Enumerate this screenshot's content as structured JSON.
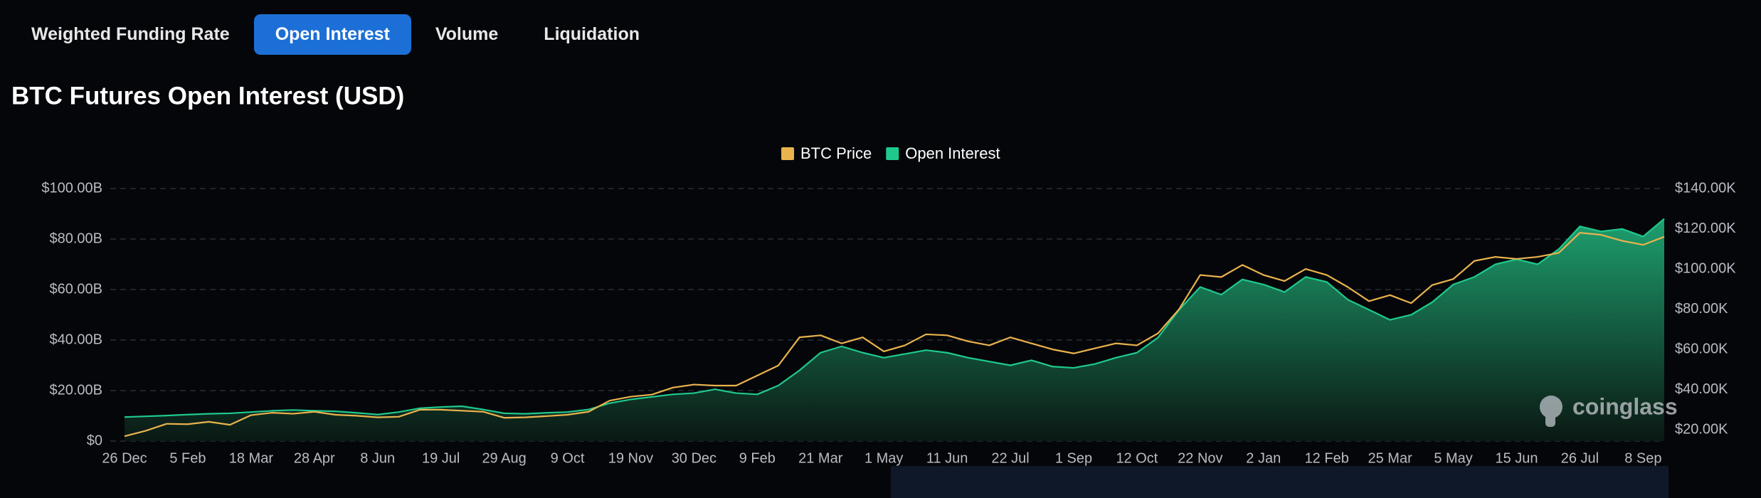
{
  "tabs": [
    "Weighted Funding Rate",
    "Open Interest",
    "Volume",
    "Liquidation"
  ],
  "chart_data": {
    "type": "line",
    "title": "BTC Futures Open Interest (USD)",
    "watermark": "coinglass",
    "legend": "top",
    "grid": true,
    "categories": [
      "26 Dec",
      null,
      null,
      "5 Feb",
      null,
      null,
      "18 Mar",
      null,
      null,
      "28 Apr",
      null,
      null,
      "8 Jun",
      null,
      null,
      "19 Jul",
      null,
      null,
      "29 Aug",
      null,
      null,
      "9 Oct",
      null,
      null,
      "19 Nov",
      null,
      null,
      "30 Dec",
      null,
      null,
      "9 Feb",
      null,
      null,
      "21 Mar",
      null,
      null,
      "1 May",
      null,
      null,
      "11 Jun",
      null,
      null,
      "22 Jul",
      null,
      null,
      "1 Sep",
      null,
      null,
      "12 Oct",
      null,
      null,
      "22 Nov",
      null,
      null,
      "2 Jan",
      null,
      null,
      "12 Feb",
      null,
      null,
      "25 Mar",
      null,
      null,
      "5 May",
      null,
      null,
      "15 Jun",
      null,
      null,
      "26 Jul",
      null,
      null,
      "8 Sep",
      null
    ],
    "series": [
      {
        "name": "BTC Price",
        "color": "#e9b34d",
        "axis": "y2",
        "values": [
          16800,
          19500,
          23000,
          22800,
          24000,
          22500,
          27300,
          28500,
          28000,
          29000,
          27500,
          27000,
          26200,
          26500,
          30000,
          30000,
          29500,
          29000,
          26000,
          26200,
          26800,
          27500,
          29000,
          34500,
          36500,
          37500,
          41000,
          42500,
          42000,
          42000,
          47000,
          52000,
          66000,
          67000,
          63000,
          66000,
          59000,
          62000,
          67500,
          67000,
          64000,
          62000,
          66000,
          63000,
          60000,
          58000,
          60500,
          63000,
          62000,
          68000,
          80000,
          97000,
          96000,
          102000,
          97000,
          94000,
          100000,
          97000,
          91000,
          84000,
          87000,
          83000,
          92000,
          95000,
          104000,
          106000,
          105000,
          106000,
          108000,
          118000,
          117000,
          114000,
          112000,
          116000
        ]
      },
      {
        "name": "Open Interest",
        "color": "#1fc98c",
        "area": true,
        "values": [
          9.5,
          9.8,
          10.1,
          10.5,
          10.8,
          11.0,
          11.5,
          12.0,
          12.3,
          12.0,
          11.8,
          11.2,
          10.5,
          11.5,
          13.0,
          13.5,
          13.8,
          12.5,
          11.0,
          10.8,
          11.2,
          11.5,
          12.5,
          15.0,
          16.5,
          17.5,
          18.5,
          19.0,
          20.5,
          19.0,
          18.5,
          22.0,
          28.0,
          35.0,
          37.5,
          35.0,
          33.0,
          34.5,
          36.0,
          35.0,
          33.0,
          31.5,
          30.0,
          32.0,
          29.5,
          29.0,
          30.5,
          33.0,
          35.0,
          41.0,
          52.0,
          61.0,
          58.0,
          64.0,
          62.0,
          59.0,
          65.0,
          63.0,
          56.0,
          52.0,
          48.0,
          50.0,
          55.0,
          62.0,
          65.0,
          70.0,
          72.0,
          70.0,
          76.0,
          85.0,
          83.0,
          84.0,
          81.0,
          88.0
        ]
      }
    ],
    "ylim": [
      0,
      100
    ],
    "yticks": [
      {
        "value": 0,
        "label": "$0"
      },
      {
        "value": 20,
        "label": "$20.00B"
      },
      {
        "value": 40,
        "label": "$40.00B"
      },
      {
        "value": 60,
        "label": "$60.00B"
      },
      {
        "value": 80,
        "label": "$80.00B"
      },
      {
        "value": 100,
        "label": "$100.00B"
      }
    ],
    "y2lim": [
      14400,
      140000
    ],
    "y2ticks": [
      {
        "value": 20000,
        "label": "$20.00K"
      },
      {
        "value": 40000,
        "label": "$40.00K"
      },
      {
        "value": 60000,
        "label": "$60.00K"
      },
      {
        "value": 80000,
        "label": "$80.00K"
      },
      {
        "value": 100000,
        "label": "$100.00K"
      },
      {
        "value": 120000,
        "label": "$120.00K"
      },
      {
        "value": 140000,
        "label": "$140.00K"
      }
    ]
  }
}
